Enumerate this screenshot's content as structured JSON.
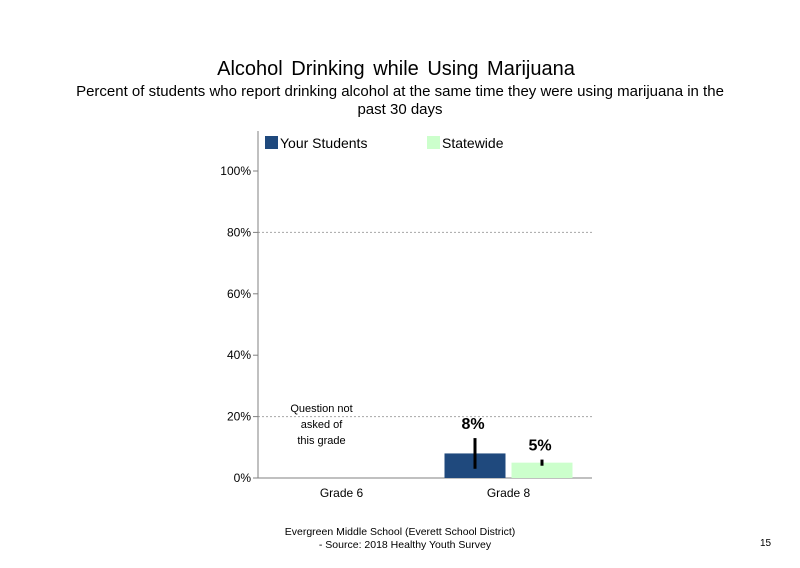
{
  "header": {
    "title": "Alcohol Drinking  while  Using  Marijuana",
    "subtitle": "Percent of students who report drinking alcohol at the same time they were using marijuana in the past 30 days"
  },
  "chart_data": {
    "type": "bar",
    "categories": [
      "Grade 6",
      "Grade 8"
    ],
    "series": [
      {
        "name": "Your Students",
        "color": "#1f497d",
        "values": [
          null,
          8
        ],
        "labels": [
          "",
          "8%"
        ],
        "error_low": [
          null,
          3
        ],
        "error_high": [
          null,
          13
        ]
      },
      {
        "name": "Statewide",
        "color": "#ccffcc",
        "values": [
          null,
          5
        ],
        "labels": [
          "",
          "5%"
        ],
        "error_low": [
          null,
          4
        ],
        "error_high": [
          null,
          6
        ]
      }
    ],
    "ylim": [
      0,
      100
    ],
    "yticks": [
      0,
      20,
      40,
      60,
      80,
      100
    ],
    "ytick_labels": [
      "0%",
      "20%",
      "40%",
      "60%",
      "80%",
      "100%"
    ],
    "gridlines": [
      20,
      80
    ],
    "legend_position": "top",
    "annotations": [
      {
        "category": "Grade 6",
        "lines": [
          "Question not",
          "asked of",
          "this grade"
        ]
      }
    ]
  },
  "footer": {
    "line1": "Evergreen Middle  School  (Everett  School District)",
    "line2": "- Source: 2018 Healthy  Youth Survey",
    "page_number": "15"
  }
}
